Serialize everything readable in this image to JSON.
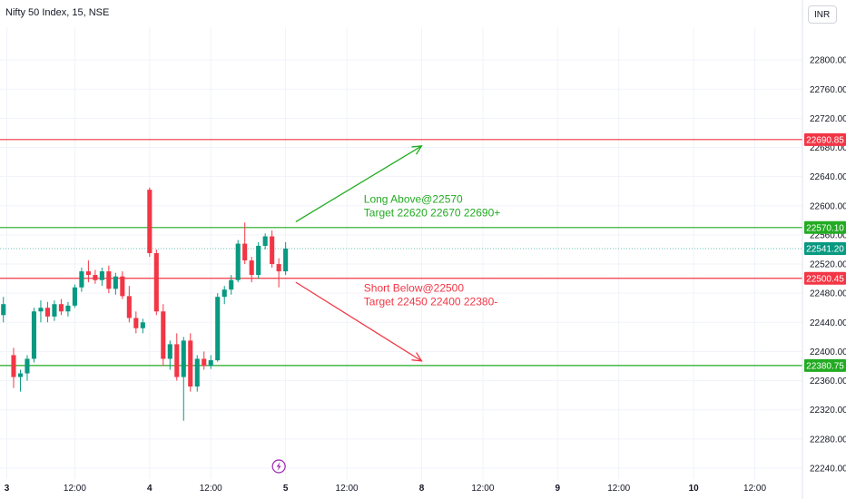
{
  "header": {
    "symbol_title": "Nifty 50 Index, 15, NSE",
    "currency": "INR"
  },
  "chart_data": {
    "type": "candlestick",
    "y_axis": {
      "ticks": [
        22240,
        22280,
        22320,
        22360,
        22400,
        22440,
        22480,
        22520,
        22560,
        22600,
        22640,
        22680,
        22720,
        22760,
        22800
      ],
      "range": [
        22225,
        22845
      ],
      "position": "right"
    },
    "x_axis": {
      "ticks": [
        {
          "label": "3",
          "bar": 0
        },
        {
          "label": "12:00",
          "bar": 10
        },
        {
          "label": "4",
          "bar": 21
        },
        {
          "label": "12:00",
          "bar": 30
        },
        {
          "label": "5",
          "bar": 41
        },
        {
          "label": "12:00",
          "bar": 50
        },
        {
          "label": "8",
          "bar": 61
        },
        {
          "label": "12:00",
          "bar": 70
        },
        {
          "label": "9",
          "bar": 81
        },
        {
          "label": "12:00",
          "bar": 90
        },
        {
          "label": "10",
          "bar": 101
        },
        {
          "label": "12:00",
          "bar": 110
        }
      ],
      "range": [
        -1,
        117
      ]
    },
    "candles": [
      {
        "i": -0.5,
        "o": 22450,
        "h": 22475,
        "l": 22440,
        "c": 22465
      },
      {
        "i": 1,
        "o": 22395,
        "h": 22405,
        "l": 22350,
        "c": 22365
      },
      {
        "i": 2,
        "o": 22365,
        "h": 22375,
        "l": 22345,
        "c": 22370
      },
      {
        "i": 3,
        "o": 22370,
        "h": 22395,
        "l": 22360,
        "c": 22390
      },
      {
        "i": 4,
        "o": 22390,
        "h": 22460,
        "l": 22385,
        "c": 22455
      },
      {
        "i": 5,
        "o": 22455,
        "h": 22470,
        "l": 22440,
        "c": 22460
      },
      {
        "i": 6,
        "o": 22460,
        "h": 22468,
        "l": 22440,
        "c": 22448
      },
      {
        "i": 7,
        "o": 22448,
        "h": 22470,
        "l": 22442,
        "c": 22465
      },
      {
        "i": 8,
        "o": 22465,
        "h": 22472,
        "l": 22450,
        "c": 22455
      },
      {
        "i": 9,
        "o": 22455,
        "h": 22468,
        "l": 22448,
        "c": 22463
      },
      {
        "i": 10,
        "o": 22463,
        "h": 22492,
        "l": 22460,
        "c": 22488
      },
      {
        "i": 11,
        "o": 22488,
        "h": 22515,
        "l": 22482,
        "c": 22510
      },
      {
        "i": 12,
        "o": 22510,
        "h": 22525,
        "l": 22495,
        "c": 22505
      },
      {
        "i": 13,
        "o": 22505,
        "h": 22512,
        "l": 22493,
        "c": 22498
      },
      {
        "i": 14,
        "o": 22498,
        "h": 22515,
        "l": 22490,
        "c": 22510
      },
      {
        "i": 15,
        "o": 22510,
        "h": 22518,
        "l": 22480,
        "c": 22486
      },
      {
        "i": 16,
        "o": 22486,
        "h": 22508,
        "l": 22478,
        "c": 22503
      },
      {
        "i": 17,
        "o": 22503,
        "h": 22510,
        "l": 22472,
        "c": 22476
      },
      {
        "i": 18,
        "o": 22476,
        "h": 22490,
        "l": 22440,
        "c": 22446
      },
      {
        "i": 19,
        "o": 22446,
        "h": 22455,
        "l": 22425,
        "c": 22432
      },
      {
        "i": 20,
        "o": 22432,
        "h": 22445,
        "l": 22425,
        "c": 22440
      },
      {
        "i": 21,
        "o": 22622,
        "h": 22625,
        "l": 22530,
        "c": 22535
      },
      {
        "i": 22,
        "o": 22535,
        "h": 22540,
        "l": 22450,
        "c": 22455
      },
      {
        "i": 23,
        "o": 22455,
        "h": 22465,
        "l": 22380,
        "c": 22390
      },
      {
        "i": 24,
        "o": 22390,
        "h": 22415,
        "l": 22375,
        "c": 22410
      },
      {
        "i": 25,
        "o": 22410,
        "h": 22425,
        "l": 22360,
        "c": 22365
      },
      {
        "i": 26,
        "o": 22365,
        "h": 22420,
        "l": 22305,
        "c": 22415
      },
      {
        "i": 27,
        "o": 22415,
        "h": 22425,
        "l": 22345,
        "c": 22352
      },
      {
        "i": 28,
        "o": 22352,
        "h": 22395,
        "l": 22345,
        "c": 22390
      },
      {
        "i": 29,
        "o": 22390,
        "h": 22400,
        "l": 22375,
        "c": 22380
      },
      {
        "i": 30,
        "o": 22380,
        "h": 22395,
        "l": 22376,
        "c": 22388
      },
      {
        "i": 31,
        "o": 22388,
        "h": 22480,
        "l": 22386,
        "c": 22475
      },
      {
        "i": 32,
        "o": 22475,
        "h": 22490,
        "l": 22465,
        "c": 22485
      },
      {
        "i": 33,
        "o": 22485,
        "h": 22505,
        "l": 22478,
        "c": 22498
      },
      {
        "i": 34,
        "o": 22498,
        "h": 22553,
        "l": 22495,
        "c": 22548
      },
      {
        "i": 35,
        "o": 22548,
        "h": 22577,
        "l": 22520,
        "c": 22525
      },
      {
        "i": 36,
        "o": 22525,
        "h": 22530,
        "l": 22495,
        "c": 22505
      },
      {
        "i": 37,
        "o": 22505,
        "h": 22550,
        "l": 22500,
        "c": 22545
      },
      {
        "i": 38,
        "o": 22545,
        "h": 22562,
        "l": 22540,
        "c": 22558
      },
      {
        "i": 39,
        "o": 22558,
        "h": 22566,
        "l": 22515,
        "c": 22520
      },
      {
        "i": 40,
        "o": 22520,
        "h": 22528,
        "l": 22488,
        "c": 22510
      },
      {
        "i": 41,
        "o": 22510,
        "h": 22550,
        "l": 22505,
        "c": 22541.2
      }
    ],
    "horizontal_lines": [
      {
        "value": 22690.85,
        "label": "22690.85",
        "color": "#f23645"
      },
      {
        "value": 22570.1,
        "label": "22570.10",
        "color": "#22ab22"
      },
      {
        "value": 22500.45,
        "label": "22500.45",
        "color": "#f23645"
      },
      {
        "value": 22380.75,
        "label": "22380.75",
        "color": "#22ab22"
      }
    ],
    "last_price": {
      "value": 22541.2,
      "label": "22541.20",
      "color": "#089981"
    },
    "annotations": [
      {
        "lines": [
          "Long Above@22570",
          "Target 22620 22670 22690+"
        ],
        "color": "#22ab22",
        "bar": 52.5,
        "value": 22604
      },
      {
        "lines": [
          "Short Below@22500",
          "Target 22450 22400 22380-"
        ],
        "color": "#f23645",
        "bar": 52.5,
        "value": 22482
      }
    ],
    "arrows": [
      {
        "from": {
          "bar": 42.5,
          "value": 22578
        },
        "to": {
          "bar": 61,
          "value": 22682
        },
        "color": "#22ab22"
      },
      {
        "from": {
          "bar": 42.5,
          "value": 22495
        },
        "to": {
          "bar": 61,
          "value": 22387
        },
        "color": "#f23645"
      }
    ],
    "event_marker": {
      "bar": 40,
      "icon": "lightning-icon",
      "color": "#9c27b0"
    },
    "colors": {
      "up": "#089981",
      "down": "#f23645",
      "grid": "#f0f3fa",
      "axis_text": "#131722"
    }
  }
}
